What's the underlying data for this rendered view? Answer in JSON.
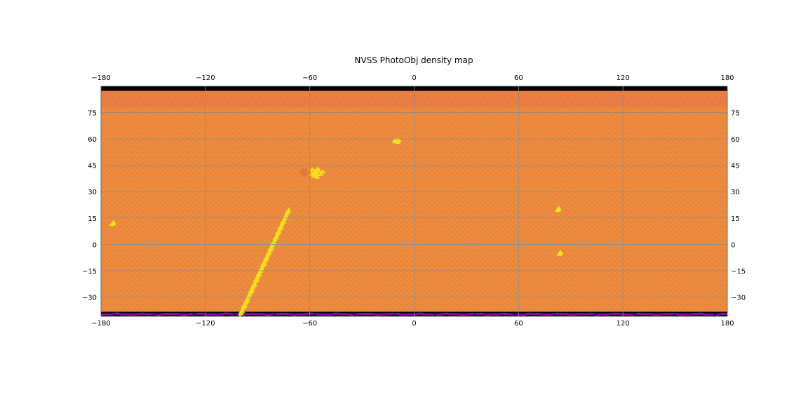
{
  "chart_data": {
    "type": "heatmap",
    "title": "NVSS PhotoObj density map",
    "projection": "equirectangular (cylindrical)",
    "x_axis": {
      "label": "",
      "lim": [
        -180,
        180
      ],
      "ticks": [
        -180,
        -120,
        -60,
        0,
        60,
        120,
        180
      ],
      "tick_labels": [
        "−180",
        "−120",
        "−60",
        "0",
        "60",
        "120",
        "180"
      ],
      "tick_label_positions": [
        "top",
        "bottom"
      ]
    },
    "y_axis": {
      "label": "",
      "lim": [
        -41,
        90
      ],
      "ticks": [
        -30,
        -15,
        0,
        15,
        30,
        45,
        60,
        75
      ],
      "tick_labels": [
        "−30",
        "−15",
        "0",
        "15",
        "30",
        "45",
        "60",
        "75"
      ],
      "tick_label_positions": [
        "left",
        "right"
      ]
    },
    "grid": true,
    "grid_lines": {
      "longitudes": [
        -180,
        -120,
        -60,
        0,
        60,
        120,
        180
      ],
      "latitudes": [
        -30,
        -15,
        0,
        15,
        30,
        45,
        60,
        75
      ]
    },
    "colormap": "plasma",
    "background_density": "medium (orange)",
    "high_density_regions": [
      {
        "description": "diagonal streak",
        "from": {
          "lon": -100,
          "lat": -40
        },
        "to": {
          "lon": -72,
          "lat": 20
        }
      },
      {
        "description": "blob",
        "center": {
          "lon": -57,
          "lat": 41
        }
      },
      {
        "description": "small patch",
        "center": {
          "lon": -10,
          "lat": 59
        }
      },
      {
        "description": "small spot",
        "center": {
          "lon": -173,
          "lat": 12
        }
      },
      {
        "description": "small spot",
        "center": {
          "lon": 83,
          "lat": 20
        }
      },
      {
        "description": "small spot",
        "center": {
          "lon": 84,
          "lat": -5
        }
      }
    ],
    "low_density_regions": [
      {
        "description": "southern edge band",
        "lat_range": [
          -41,
          -40
        ]
      },
      {
        "description": "northern pole band",
        "lat_range": [
          89,
          90
        ]
      }
    ],
    "colors": {
      "background": "#f08c3a",
      "high": "#f4e219",
      "mid": "#e8703e",
      "low": "#8b0aa5",
      "lowest": "#0d0887",
      "empty": "#000000",
      "grid": "#8c8c8c"
    }
  }
}
